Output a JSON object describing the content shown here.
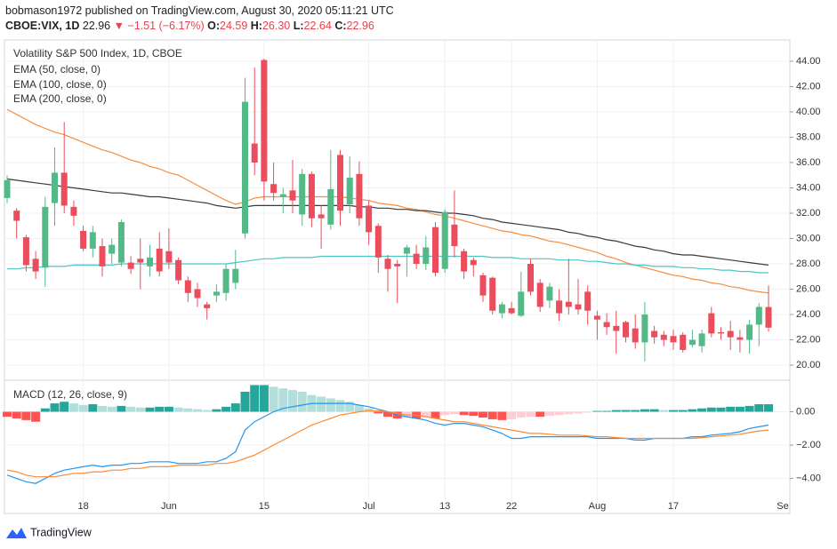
{
  "header": {
    "published": "bobmason1972 published on TradingView.com, August 30, 2020 05:11:21 UTC",
    "symbol": "CBOE:VIX, 1D",
    "last": "22.96",
    "change": "▼ −1.51 (−6.17%)",
    "o_label": "O:",
    "o": "24.59",
    "h_label": "H:",
    "h": "26.30",
    "l_label": "L:",
    "l": "22.64",
    "c_label": "C:",
    "c": "22.96"
  },
  "footer": {
    "brand": "TradingView"
  },
  "chart_data": [
    {
      "type": "candlestick",
      "title": "Volatility S&P 500 Index, 1D, CBOE",
      "up_color": "#53b987",
      "down_color": "#eb4d5c",
      "grid": true,
      "categories": [
        null,
        null,
        null,
        null,
        null,
        null,
        null,
        null,
        "18",
        null,
        null,
        null,
        null,
        null,
        null,
        null,
        null,
        "Jun",
        null,
        null,
        null,
        null,
        null,
        null,
        null,
        null,
        null,
        "15",
        null,
        null,
        null,
        null,
        null,
        null,
        null,
        null,
        null,
        null,
        "Jul",
        null,
        null,
        null,
        null,
        null,
        null,
        null,
        "13",
        null,
        null,
        null,
        null,
        null,
        null,
        "22",
        null,
        null,
        null,
        null,
        null,
        null,
        null,
        null,
        "Aug",
        null,
        null,
        null,
        null,
        null,
        null,
        null,
        "17",
        null,
        null,
        null,
        null,
        null,
        null,
        null,
        null,
        null,
        null
      ],
      "next_month_label": "Se",
      "ohlc": [
        [
          33.2,
          35,
          32.8,
          34.6
        ],
        [
          32.2,
          32.4,
          30,
          31.4
        ],
        [
          30.1,
          30.3,
          27.4,
          27.9
        ],
        [
          28.4,
          29,
          26.8,
          27.4
        ],
        [
          27.7,
          33.3,
          26.2,
          32.5
        ],
        [
          32.8,
          37.2,
          31,
          35.2
        ],
        [
          35.2,
          39.2,
          32,
          32.6
        ],
        [
          32.5,
          33,
          31,
          31.8
        ],
        [
          30.6,
          31,
          29,
          29.2
        ],
        [
          29.2,
          31,
          28.5,
          30.5
        ],
        [
          29.4,
          30,
          27,
          27.8
        ],
        [
          28.8,
          30,
          28,
          29.5
        ],
        [
          28.1,
          31.5,
          27.8,
          31.3
        ],
        [
          28.1,
          28.6,
          27.2,
          27.6
        ],
        [
          28.4,
          30,
          26,
          28.1
        ],
        [
          27.8,
          29.5,
          27,
          28.5
        ],
        [
          29.2,
          30.5,
          27,
          27.4
        ],
        [
          29,
          30.8,
          27.6,
          28.1
        ],
        [
          28.3,
          28.5,
          26.4,
          26.7
        ],
        [
          26.7,
          27,
          25,
          25.7
        ],
        [
          26,
          26.5,
          24.6,
          25.3
        ],
        [
          24.8,
          25,
          23.6,
          24.5
        ],
        [
          25.5,
          26.4,
          25,
          25.8
        ],
        [
          25.7,
          28,
          25.1,
          27.6
        ],
        [
          26.5,
          29.1,
          26,
          27.6
        ],
        [
          30.4,
          42.7,
          30,
          40.8
        ],
        [
          37.5,
          43.5,
          35,
          36
        ],
        [
          44.1,
          44.2,
          33,
          34.5
        ],
        [
          34.3,
          36,
          33,
          33.6
        ],
        [
          33.3,
          34,
          32,
          33.5
        ],
        [
          33.8,
          36.2,
          32,
          33
        ],
        [
          31.9,
          35.5,
          31,
          35.1
        ],
        [
          35.1,
          35.3,
          30.9,
          31.6
        ],
        [
          31.9,
          32.6,
          29.2,
          31.6
        ],
        [
          31.1,
          37,
          30.7,
          33.9
        ],
        [
          36.6,
          37,
          31,
          32.2
        ],
        [
          32.7,
          36.5,
          32,
          34.8
        ],
        [
          35.1,
          36.1,
          31,
          31.6
        ],
        [
          32.6,
          33,
          29.5,
          30.5
        ],
        [
          31,
          31.2,
          27.3,
          28.5
        ],
        [
          28.4,
          28.7,
          25.8,
          27.6
        ],
        [
          28,
          28.3,
          24.9,
          27.8
        ],
        [
          28.8,
          29.5,
          27,
          29.3
        ],
        [
          28.8,
          29.5,
          27.6,
          28
        ],
        [
          28,
          30.2,
          27.5,
          29.3
        ],
        [
          30.9,
          31.3,
          27,
          27.3
        ],
        [
          27.6,
          32.3,
          27.3,
          32.1
        ],
        [
          31.1,
          33.8,
          28.5,
          29.4
        ],
        [
          29,
          29.2,
          26.8,
          27.4
        ],
        [
          28.3,
          28.5,
          27,
          27.9
        ],
        [
          27.1,
          27.3,
          25,
          25.5
        ],
        [
          26.9,
          27,
          24,
          24.3
        ],
        [
          24.1,
          25,
          23.7,
          24.8
        ],
        [
          24.5,
          25,
          24,
          24.1
        ],
        [
          23.9,
          27.4,
          23.8,
          25.8
        ],
        [
          28,
          28.4,
          25.5,
          25.8
        ],
        [
          26.5,
          26.8,
          24.2,
          24.6
        ],
        [
          25.1,
          26.5,
          24.5,
          26.2
        ],
        [
          25.1,
          26,
          23.5,
          24.1
        ],
        [
          25,
          28.4,
          24,
          24.6
        ],
        [
          24.8,
          26.8,
          24,
          24.4
        ],
        [
          25.8,
          26.3,
          23.2,
          24.3
        ],
        [
          23.9,
          24.3,
          22,
          23.6
        ],
        [
          23.4,
          24.1,
          22.4,
          23
        ],
        [
          23.1,
          24.3,
          20.9,
          22.7
        ],
        [
          23.4,
          23.5,
          21.8,
          22.2
        ],
        [
          22.9,
          24,
          21.3,
          21.8
        ],
        [
          21.8,
          25,
          20.3,
          24
        ],
        [
          22.7,
          23.1,
          21.7,
          22.2
        ],
        [
          22.4,
          22.7,
          21.5,
          22
        ],
        [
          22.3,
          22.8,
          21.2,
          21.8
        ],
        [
          22.4,
          22.6,
          21,
          21.2
        ],
        [
          21.6,
          22.8,
          21.4,
          22
        ],
        [
          21.5,
          22.8,
          21,
          22.5
        ],
        [
          24.1,
          24.6,
          22.2,
          22.5
        ],
        [
          22.6,
          23,
          22,
          22.5
        ],
        [
          22.7,
          23.5,
          21.2,
          22.2
        ],
        [
          22.2,
          22.8,
          21,
          22
        ],
        [
          22,
          23.6,
          20.9,
          23.2
        ],
        [
          23.2,
          24.9,
          21.5,
          24.6
        ],
        [
          24.59,
          26.3,
          22.64,
          22.96
        ]
      ],
      "series": [
        {
          "name": "EMA (50, close, 0)",
          "color": "#f68d3f",
          "values": [
            40.2,
            39.8,
            39.4,
            39.0,
            38.7,
            38.4,
            38.2,
            37.9,
            37.6,
            37.3,
            37.0,
            36.8,
            36.5,
            36.2,
            36.0,
            35.7,
            35.5,
            35.2,
            35.0,
            34.6,
            34.2,
            33.8,
            33.4,
            33.0,
            32.7,
            32.9,
            33.2,
            33.3,
            33.3,
            33.3,
            33.3,
            33.3,
            33.3,
            33.3,
            33.3,
            33.3,
            33.2,
            33.1,
            33.0,
            32.8,
            32.7,
            32.6,
            32.4,
            32.3,
            32.1,
            31.9,
            31.8,
            31.6,
            31.4,
            31.2,
            31.0,
            30.8,
            30.6,
            30.5,
            30.3,
            30.2,
            30.0,
            29.8,
            29.7,
            29.5,
            29.3,
            29.1,
            28.9,
            28.6,
            28.4,
            28.1,
            27.9,
            27.7,
            27.5,
            27.3,
            27.1,
            27.0,
            26.8,
            26.7,
            26.5,
            26.4,
            26.2,
            26.1,
            25.9,
            25.8,
            25.7
          ]
        },
        {
          "name": "EMA (100, close, 0)",
          "color": "#3a3a3a",
          "values": [
            34.7,
            34.6,
            34.5,
            34.4,
            34.3,
            34.2,
            34.1,
            34.0,
            33.9,
            33.8,
            33.7,
            33.6,
            33.6,
            33.5,
            33.4,
            33.3,
            33.3,
            33.2,
            33.1,
            33.0,
            32.9,
            32.8,
            32.6,
            32.5,
            32.4,
            32.5,
            32.6,
            32.6,
            32.6,
            32.6,
            32.6,
            32.6,
            32.6,
            32.6,
            32.6,
            32.6,
            32.6,
            32.5,
            32.5,
            32.4,
            32.4,
            32.3,
            32.3,
            32.2,
            32.2,
            32.1,
            32.0,
            32.0,
            31.9,
            31.8,
            31.6,
            31.5,
            31.3,
            31.2,
            31.1,
            31.0,
            30.9,
            30.8,
            30.7,
            30.5,
            30.4,
            30.2,
            30.1,
            29.9,
            29.8,
            29.6,
            29.4,
            29.3,
            29.1,
            29.0,
            28.8,
            28.7,
            28.7,
            28.6,
            28.5,
            28.4,
            28.3,
            28.2,
            28.1,
            28.0,
            27.9
          ]
        },
        {
          "name": "EMA (200, close, 0)",
          "color": "#4cc4c4",
          "values": [
            27.6,
            27.6,
            27.7,
            27.7,
            27.8,
            27.8,
            27.8,
            27.9,
            27.9,
            27.9,
            27.9,
            27.9,
            28.0,
            28.0,
            28.0,
            28.0,
            28.0,
            28.0,
            28.0,
            28.0,
            28.0,
            28.0,
            28.0,
            28.0,
            28.1,
            28.2,
            28.3,
            28.4,
            28.4,
            28.5,
            28.5,
            28.5,
            28.5,
            28.6,
            28.6,
            28.6,
            28.6,
            28.6,
            28.6,
            28.6,
            28.6,
            28.6,
            28.6,
            28.6,
            28.6,
            28.6,
            28.6,
            28.6,
            28.6,
            28.6,
            28.6,
            28.5,
            28.5,
            28.5,
            28.4,
            28.4,
            28.4,
            28.4,
            28.3,
            28.3,
            28.3,
            28.2,
            28.2,
            28.1,
            28.0,
            28.0,
            27.9,
            27.9,
            27.8,
            27.8,
            27.8,
            27.7,
            27.7,
            27.6,
            27.6,
            27.5,
            27.5,
            27.4,
            27.4,
            27.3,
            27.3
          ]
        }
      ],
      "ylim": [
        18.81,
        45.68
      ],
      "yticks": [
        {
          "value": 20,
          "label": "20.00"
        },
        {
          "value": 22,
          "label": "22.00"
        },
        {
          "value": 24,
          "label": "24.00"
        },
        {
          "value": 26,
          "label": "26.00"
        },
        {
          "value": 28,
          "label": "28.00"
        },
        {
          "value": 30,
          "label": "30.00"
        },
        {
          "value": 32,
          "label": "32.00"
        },
        {
          "value": 34,
          "label": "34.00"
        },
        {
          "value": 36,
          "label": "36.00"
        },
        {
          "value": 38,
          "label": "38.00"
        },
        {
          "value": 40,
          "label": "40.00"
        },
        {
          "value": 42,
          "label": "42.00"
        },
        {
          "value": 44,
          "label": "44.00"
        }
      ]
    },
    {
      "type": "macd",
      "title": "MACD (12, 26, close, 9)",
      "histogram_colors": [
        "#26a69a",
        "#b2dfdb",
        "#ff5252",
        "#ffcdd2"
      ],
      "histogram": [
        -0.3,
        -0.4,
        -0.5,
        -0.6,
        0.2,
        0.5,
        0.6,
        0.5,
        0.4,
        0.45,
        0.35,
        0.3,
        0.35,
        0.3,
        0.25,
        0.25,
        0.3,
        0.3,
        0.25,
        0.2,
        0.15,
        0.1,
        0.15,
        0.3,
        0.5,
        1.2,
        1.6,
        1.6,
        1.5,
        1.4,
        1.3,
        1.2,
        1.0,
        0.9,
        0.8,
        0.7,
        0.6,
        0.4,
        0.2,
        -0.1,
        -0.3,
        -0.4,
        -0.35,
        -0.4,
        -0.3,
        -0.4,
        -0.2,
        -0.15,
        -0.2,
        -0.25,
        -0.35,
        -0.45,
        -0.5,
        -0.45,
        -0.35,
        -0.3,
        -0.3,
        -0.25,
        -0.2,
        -0.15,
        -0.1,
        -0.05,
        0.05,
        0.05,
        0.1,
        0.1,
        0.1,
        0.15,
        0.15,
        0.1,
        0.1,
        0.1,
        0.15,
        0.2,
        0.25,
        0.25,
        0.3,
        0.3,
        0.35,
        0.45,
        0.45
      ],
      "series": [
        {
          "color": "#2196f3",
          "values": [
            -3.8,
            -4.0,
            -4.2,
            -4.3,
            -4.0,
            -3.7,
            -3.5,
            -3.4,
            -3.3,
            -3.2,
            -3.3,
            -3.2,
            -3.2,
            -3.1,
            -3.1,
            -3.0,
            -3.0,
            -3.0,
            -3.1,
            -3.1,
            -3.1,
            -3.0,
            -3.0,
            -2.8,
            -2.4,
            -1.1,
            -0.6,
            -0.3,
            0.0,
            0.2,
            0.3,
            0.4,
            0.5,
            0.5,
            0.5,
            0.5,
            0.5,
            0.4,
            0.3,
            0.15,
            0.0,
            -0.2,
            -0.3,
            -0.4,
            -0.5,
            -0.7,
            -0.8,
            -0.7,
            -0.7,
            -0.8,
            -0.9,
            -1.1,
            -1.3,
            -1.6,
            -1.6,
            -1.5,
            -1.5,
            -1.5,
            -1.5,
            -1.5,
            -1.5,
            -1.5,
            -1.6,
            -1.6,
            -1.6,
            -1.6,
            -1.7,
            -1.7,
            -1.6,
            -1.6,
            -1.6,
            -1.6,
            -1.5,
            -1.5,
            -1.4,
            -1.35,
            -1.3,
            -1.2,
            -1.0,
            -0.9,
            -0.8
          ]
        },
        {
          "color": "#ff8a30",
          "values": [
            -3.5,
            -3.6,
            -3.8,
            -3.9,
            -3.9,
            -3.9,
            -3.8,
            -3.7,
            -3.7,
            -3.6,
            -3.6,
            -3.5,
            -3.5,
            -3.4,
            -3.4,
            -3.3,
            -3.3,
            -3.3,
            -3.2,
            -3.2,
            -3.2,
            -3.2,
            -3.1,
            -3.1,
            -3.0,
            -2.8,
            -2.6,
            -2.3,
            -2.0,
            -1.7,
            -1.4,
            -1.1,
            -0.8,
            -0.6,
            -0.4,
            -0.2,
            -0.1,
            0.0,
            0.05,
            0.05,
            0.0,
            -0.1,
            -0.2,
            -0.2,
            -0.3,
            -0.4,
            -0.5,
            -0.6,
            -0.6,
            -0.7,
            -0.8,
            -0.9,
            -1.0,
            -1.1,
            -1.2,
            -1.3,
            -1.3,
            -1.35,
            -1.4,
            -1.4,
            -1.4,
            -1.45,
            -1.5,
            -1.5,
            -1.55,
            -1.6,
            -1.6,
            -1.6,
            -1.6,
            -1.6,
            -1.6,
            -1.6,
            -1.6,
            -1.55,
            -1.5,
            -1.45,
            -1.4,
            -1.35,
            -1.25,
            -1.15,
            -1.1
          ]
        }
      ],
      "ylim": [
        -6.1,
        1.89
      ],
      "yticks": [
        {
          "value": 0,
          "label": "0.00"
        },
        {
          "value": -2,
          "label": "−2.00"
        },
        {
          "value": -4,
          "label": "−4.00"
        }
      ]
    }
  ]
}
